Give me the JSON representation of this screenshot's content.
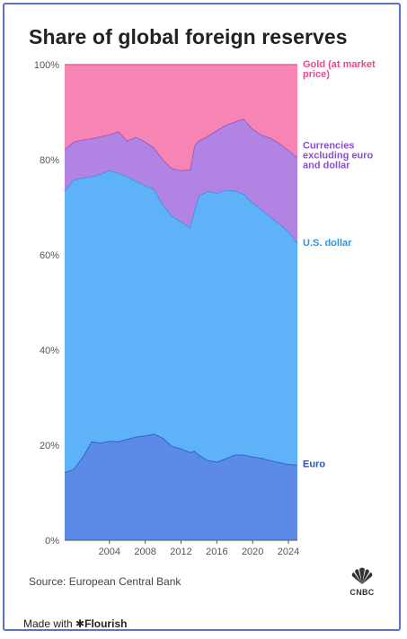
{
  "title": "Share of global foreign reserves",
  "source": "Source: European Central Bank",
  "footer": {
    "made_with": "Made with",
    "brand": "Flourish"
  },
  "logo": {
    "text": "CNBC",
    "icon": "peacock-icon"
  },
  "colors": {
    "euro": "#5b8be6",
    "usd": "#5eb2f8",
    "other": "#b184e4",
    "gold": "#f685b4",
    "euro_line": "#2c56c4",
    "usd_line": "#3d8fe0",
    "other_line": "#8d54cc",
    "gold_line": "#f06099",
    "euro_label": "#2453c0",
    "usd_label": "#2e95d8",
    "other_label": "#8a4fc9",
    "gold_label": "#e64a8c"
  },
  "chart_data": {
    "type": "area",
    "stacked": true,
    "xlim": [
      1999,
      2025
    ],
    "ylim": [
      0,
      100
    ],
    "y_ticks": [
      "0%",
      "20%",
      "40%",
      "60%",
      "80%",
      "100%"
    ],
    "y_tick_values": [
      0,
      20,
      40,
      60,
      80,
      100
    ],
    "x_ticks": [
      "2004",
      "2008",
      "2012",
      "2016",
      "2020",
      "2024"
    ],
    "x_tick_values": [
      2004,
      2008,
      2012,
      2016,
      2020,
      2024
    ],
    "grid": false,
    "x": [
      1999,
      2000,
      2001,
      2002,
      2003,
      2004,
      2005,
      2006,
      2007,
      2008,
      2009,
      2010,
      2011,
      2012,
      2013,
      2013.5,
      2014,
      2015,
      2016,
      2017,
      2018,
      2019,
      2020,
      2021,
      2022,
      2023,
      2024,
      2025
    ],
    "series": [
      {
        "name": "Euro",
        "cumulative": [
          14.3,
          15.0,
          17.5,
          20.8,
          20.5,
          20.9,
          20.8,
          21.3,
          21.8,
          22.0,
          22.4,
          21.5,
          19.8,
          19.3,
          18.5,
          18.8,
          18.0,
          16.8,
          16.5,
          17.2,
          18.0,
          18.0,
          17.6,
          17.3,
          16.8,
          16.4,
          16.0,
          15.9
        ]
      },
      {
        "name": "U.S. dollar",
        "cumulative": [
          73.5,
          75.8,
          76.2,
          76.5,
          77.0,
          77.8,
          77.2,
          76.5,
          75.5,
          74.6,
          73.8,
          70.5,
          68.2,
          67.0,
          65.8,
          69.5,
          72.5,
          73.4,
          73.0,
          73.6,
          73.5,
          72.8,
          71.0,
          69.5,
          68.0,
          66.5,
          65.0,
          62.5
        ]
      },
      {
        "name": "Currencies excluding euro and dollar",
        "cumulative": [
          82.2,
          83.8,
          84.2,
          84.5,
          84.9,
          85.3,
          86.0,
          84.0,
          84.8,
          83.8,
          82.5,
          80.0,
          78.2,
          77.8,
          78.0,
          83.0,
          84.0,
          85.0,
          86.2,
          87.3,
          88.0,
          88.6,
          86.5,
          85.2,
          84.6,
          83.5,
          82.0,
          80.5
        ]
      },
      {
        "name": "Gold (at market price)",
        "cumulative": [
          100,
          100,
          100,
          100,
          100,
          100,
          100,
          100,
          100,
          100,
          100,
          100,
          100,
          100,
          100,
          100,
          100,
          100,
          100,
          100,
          100,
          100,
          100,
          100,
          100,
          100,
          100,
          100
        ]
      }
    ],
    "labels": [
      {
        "series": 0,
        "lines": [
          "Euro"
        ]
      },
      {
        "series": 1,
        "lines": [
          "U.S. dollar"
        ]
      },
      {
        "series": 2,
        "lines": [
          "Currencies",
          "excluding euro",
          "and dollar"
        ]
      },
      {
        "series": 3,
        "lines": [
          "Gold (at market",
          "price)"
        ]
      }
    ]
  }
}
